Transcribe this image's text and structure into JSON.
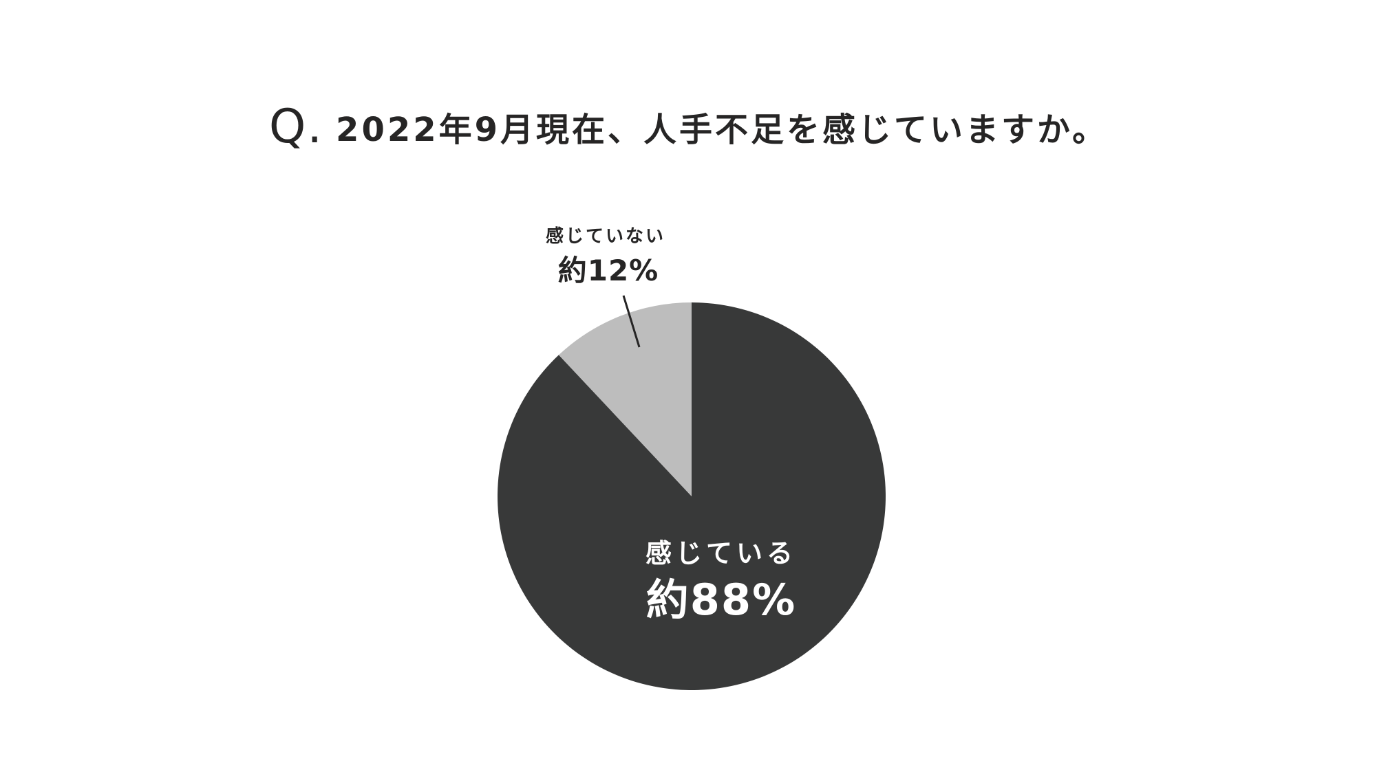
{
  "title": {
    "prefix": "Q.",
    "text": "2022年9月現在、人手不足を感じていますか。"
  },
  "chart_data": {
    "type": "pie",
    "title": "Q. 2022年9月現在、人手不足を感じていますか。",
    "start_angle_deg": 0,
    "direction": "clockwise",
    "slices": [
      {
        "label": "感じている",
        "value": 88,
        "value_label": "約88%",
        "color": "#383939",
        "text_color": "#ffffff"
      },
      {
        "label": "感じていない",
        "value": 12,
        "value_label": "約12%",
        "color": "#bdbdbd",
        "text_color": "#262525"
      }
    ]
  }
}
